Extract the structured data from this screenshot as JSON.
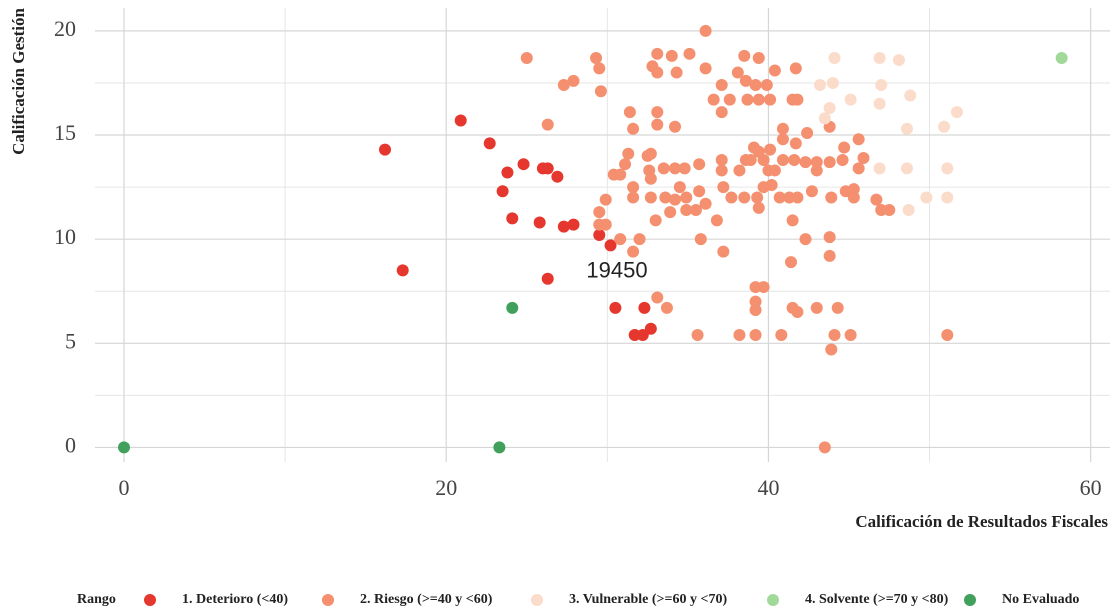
{
  "chart_data": {
    "type": "scatter",
    "xlabel": "Calificación de Resultados Fiscales",
    "ylabel": "Calificación Gestión",
    "legend_title": "Rango",
    "legend": "bottom",
    "grid": true,
    "xlim": [
      -1.8,
      61.2
    ],
    "ylim": [
      -0.7,
      21.1
    ],
    "xticks": [
      0,
      20,
      40,
      60
    ],
    "yticks": [
      0,
      5,
      10,
      15,
      20
    ],
    "xminor": [
      10,
      30,
      50
    ],
    "yminor": [
      2.5,
      7.5,
      12.5,
      17.5
    ],
    "annotations": [
      {
        "text": "19450",
        "x": 30.6,
        "y": 8.45
      }
    ],
    "series": [
      {
        "name": "1. Deterioro (<40)",
        "color": "#e6372e",
        "x": [
          16.2,
          17.3,
          20.9,
          22.7,
          23.5,
          23.8,
          24.1,
          24.8,
          25.8,
          26.0,
          26.3,
          26.9,
          26.3,
          27.3,
          27.9,
          29.5,
          30.2,
          30.5,
          31.7,
          32.2,
          32.7,
          32.3
        ],
        "values": [
          14.3,
          8.5,
          15.7,
          14.6,
          12.3,
          13.2,
          11.0,
          13.6,
          10.8,
          13.4,
          13.4,
          13.0,
          8.1,
          10.6,
          10.7,
          10.2,
          9.7,
          6.7,
          5.4,
          5.4,
          5.7,
          6.7
        ]
      },
      {
        "name": "2. Riesgo (>=40 y <60)",
        "color": "#f4906f",
        "x": [
          25,
          29.3,
          29.5,
          29.6,
          27.9,
          27.3,
          26.3,
          33.1,
          35.1,
          34.0,
          36.1,
          34.3,
          32.8,
          33.1,
          36.1,
          38.5,
          39.4,
          38.1,
          38.6,
          39.2,
          39.9,
          40.4,
          41.7,
          37.1,
          36.6,
          37.6,
          38.7,
          39.4,
          40.1,
          41.5,
          41.8,
          37.1,
          33.1,
          33.1,
          31.4,
          31.6,
          34.2,
          40.9,
          41.7,
          42.4,
          43.8,
          31.3,
          32.7,
          31.1,
          30.8,
          30.4,
          32.5,
          32.6,
          33.5,
          34.2,
          34.8,
          35.7,
          37.1,
          37.1,
          38.2,
          38.6,
          38.9,
          39.1,
          39.4,
          39.7,
          40.0,
          40.4,
          40.9,
          41.6,
          42.3,
          43.0,
          43.8,
          44.6,
          45.9,
          45.6,
          43.0,
          31.6,
          31.6,
          32.7,
          32.7,
          33.6,
          34.5,
          34.9,
          35.7,
          37.2,
          37.7,
          38.5,
          39.3,
          39.7,
          40.2,
          40.7,
          41.3,
          41.8,
          42.7,
          43.9,
          44.8,
          45.3,
          45.3,
          46.7,
          47.0,
          47.5,
          29.5,
          29.9,
          29.5,
          29.9,
          30.8,
          32.0,
          31.6,
          33.0,
          33.9,
          34.9,
          35.5,
          36.1,
          36.8,
          39.4,
          41.5,
          42.3,
          43.8,
          43.8,
          41.4,
          35.8,
          37.2,
          33.1,
          33.7,
          39.2,
          39.7,
          39.2,
          39.2,
          41.5,
          41.8,
          43.0,
          44.3,
          35.6,
          38.2,
          39.2,
          40.8,
          44.1,
          45.1,
          43.9,
          51.1,
          43.5,
          45.6,
          44.7,
          34.2,
          40.1,
          40.9
        ],
        "values": [
          18.7,
          18.7,
          18.2,
          17.1,
          17.6,
          17.4,
          15.5,
          18.9,
          18.9,
          18.8,
          20.0,
          18.0,
          18.3,
          18.0,
          18.2,
          18.8,
          18.7,
          18.0,
          17.6,
          17.4,
          17.4,
          18.1,
          18.2,
          17.4,
          16.7,
          16.7,
          16.7,
          16.7,
          16.7,
          16.7,
          16.7,
          16.1,
          16.1,
          15.5,
          16.1,
          15.3,
          15.4,
          15.3,
          14.6,
          15.1,
          15.4,
          14.1,
          14.1,
          13.6,
          13.1,
          13.1,
          14.0,
          13.3,
          13.4,
          13.4,
          13.4,
          13.6,
          13.8,
          13.3,
          13.3,
          13.8,
          13.8,
          14.4,
          14.2,
          13.8,
          13.3,
          13.3,
          13.8,
          13.8,
          13.7,
          13.3,
          13.7,
          13.8,
          13.9,
          13.4,
          13.7,
          12.5,
          12.0,
          12.9,
          12.0,
          12.0,
          12.5,
          12.0,
          12.3,
          12.5,
          12.0,
          12.0,
          12.0,
          12.5,
          12.6,
          12.0,
          12.0,
          12.0,
          12.3,
          12.0,
          12.3,
          12.4,
          12.0,
          11.9,
          11.4,
          11.4,
          11.3,
          11.9,
          10.7,
          10.7,
          10.0,
          10.0,
          9.4,
          10.9,
          11.3,
          11.4,
          11.4,
          11.7,
          10.9,
          11.5,
          10.9,
          10.0,
          10.1,
          9.2,
          8.9,
          10.0,
          9.4,
          7.2,
          6.7,
          7.7,
          7.7,
          7.0,
          6.6,
          6.7,
          6.5,
          6.7,
          6.7,
          5.4,
          5.4,
          5.4,
          5.4,
          5.4,
          5.4,
          4.7,
          5.4,
          0,
          14.8,
          14.4,
          11.9,
          14.3,
          14.8
        ]
      },
      {
        "name": "3. Vulnerable (>=60 y <70)",
        "color": "#fbdccb",
        "x": [
          44,
          43.2,
          44.1,
          46.9,
          48.1,
          47,
          45.1,
          46.9,
          48.8,
          43.8,
          51.7,
          50.9,
          48.6,
          46.9,
          48.6,
          51.1,
          49.8,
          51.1,
          48.7,
          43.5
        ],
        "values": [
          17.5,
          17.4,
          18.7,
          18.7,
          18.6,
          17.4,
          16.7,
          16.5,
          16.9,
          16.3,
          16.1,
          15.4,
          15.3,
          13.4,
          13.4,
          13.4,
          12.0,
          12.0,
          11.4,
          15.8
        ]
      },
      {
        "name": "4. Solvente (>=70 y <80)",
        "color": "#a1d99b",
        "x": [
          58.2
        ],
        "values": [
          18.7
        ]
      },
      {
        "name": "No Evaluado",
        "color": "#41a05b",
        "x": [
          0,
          23.3,
          24.1
        ],
        "values": [
          0,
          0,
          6.7
        ]
      }
    ]
  }
}
